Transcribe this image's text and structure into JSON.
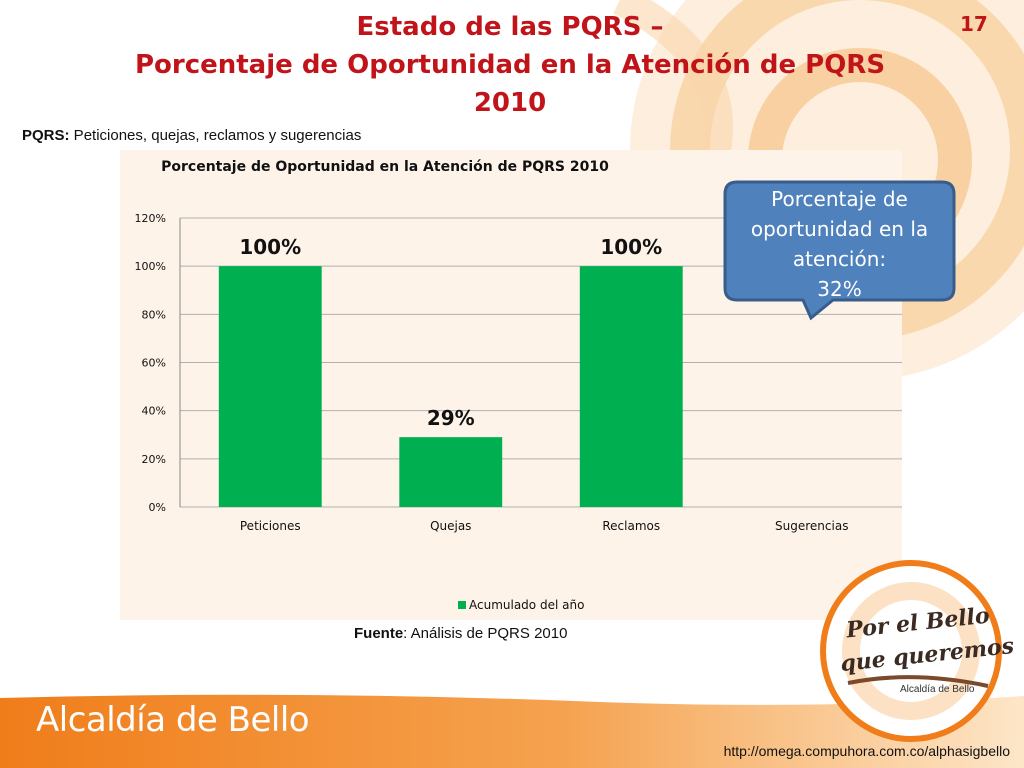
{
  "slide": {
    "title_line1": "Estado de las PQRS –",
    "title_line2": "Porcentaje de Oportunidad en la Atención de PQRS",
    "title_line3": "2010",
    "number": "17",
    "subtitle_bold": "PQRS:",
    "subtitle_rest": " Peticiones, quejas, reclamos y sugerencias",
    "callout_line1": "Porcentaje de",
    "callout_line2": "oportunidad en la",
    "callout_line3": "atención:",
    "callout_value": "32%",
    "fuente_bold": "Fuente",
    "fuente_rest": ": Análisis de PQRS 2010",
    "footer_brand": "Alcaldía de Bello",
    "url": "http://omega.compuhora.com.co/alphasigbello",
    "logo_line1": "Por el Bello",
    "logo_line2": "que queremos",
    "logo_sub": "Alcaldía de Bello"
  },
  "colors": {
    "title": "#c0141a",
    "bar": "#00b050",
    "callout_fill": "#4f81bd",
    "callout_border": "#385d8a",
    "footer": "#f07d1a"
  },
  "chart_data": {
    "type": "bar",
    "title": "Porcentaje de Oportunidad en la Atención de PQRS 2010",
    "categories": [
      "Peticiones",
      "Quejas",
      "Reclamos",
      "Sugerencias"
    ],
    "series": [
      {
        "name": "Acumulado del año",
        "values": [
          100,
          29,
          100,
          null
        ]
      }
    ],
    "data_labels": [
      "100%",
      "29%",
      "100%",
      ""
    ],
    "yticks": [
      "0%",
      "20%",
      "40%",
      "60%",
      "80%",
      "100%",
      "120%"
    ],
    "ylim": [
      0,
      120
    ],
    "legend": "bottom",
    "grid": true
  }
}
